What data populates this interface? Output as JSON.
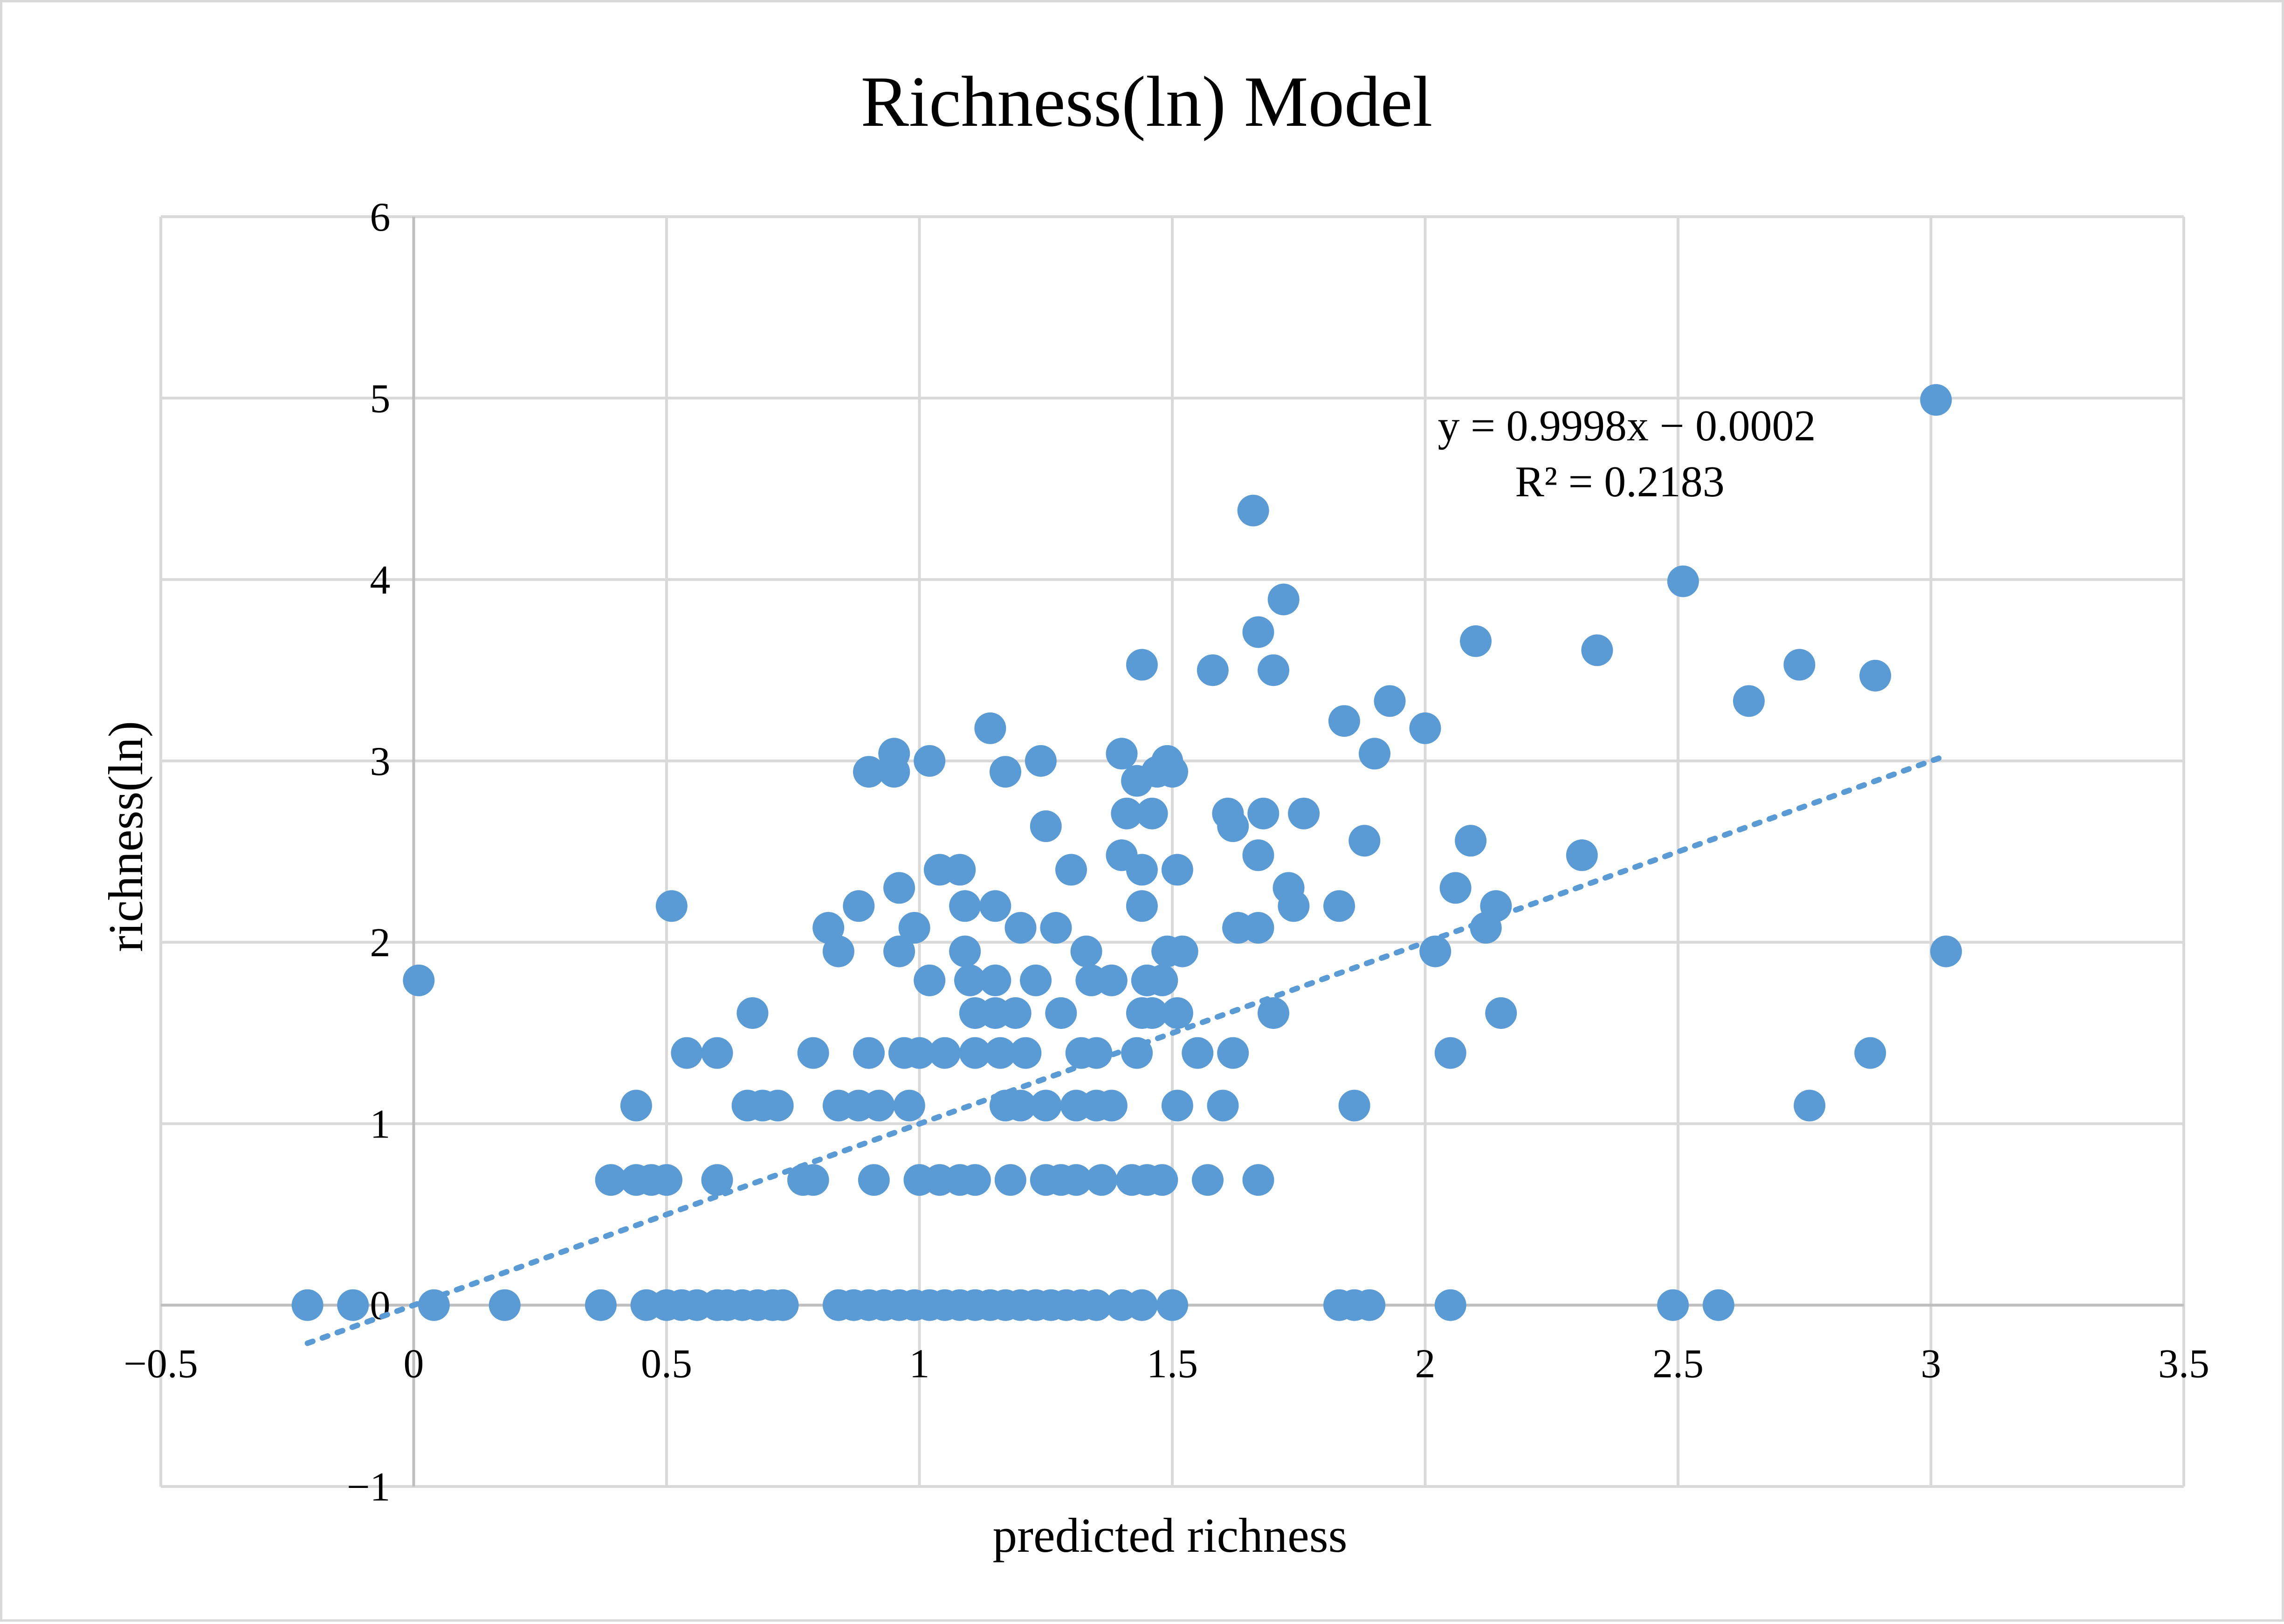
{
  "chart_data": {
    "type": "scatter",
    "title": "Richness(ln) Model",
    "xlabel": "predicted richness",
    "ylabel": "richness(ln)",
    "xlim": [
      -0.5,
      3.5
    ],
    "ylim": [
      -1,
      6
    ],
    "x_ticks": [
      -0.5,
      0,
      0.5,
      1,
      1.5,
      2,
      2.5,
      3,
      3.5
    ],
    "y_ticks": [
      -1,
      0,
      1,
      2,
      3,
      4,
      5,
      6
    ],
    "x_tick_labels": [
      "−0.5",
      "0",
      "0.5",
      "1",
      "1.5",
      "2",
      "2.5",
      "3",
      "3.5"
    ],
    "y_tick_labels": [
      "−1",
      "0",
      "1",
      "2",
      "3",
      "4",
      "5",
      "6"
    ],
    "grid": true,
    "point_color": "#5b9bd5",
    "series": [
      {
        "name": "richness(ln)",
        "points": [
          [
            -0.21,
            0
          ],
          [
            -0.12,
            0
          ],
          [
            0.04,
            0
          ],
          [
            0.18,
            0
          ],
          [
            0.37,
            0
          ],
          [
            0.46,
            0
          ],
          [
            0.5,
            0
          ],
          [
            0.53,
            0
          ],
          [
            0.56,
            0
          ],
          [
            0.6,
            0
          ],
          [
            0.62,
            0
          ],
          [
            0.65,
            0
          ],
          [
            0.68,
            0
          ],
          [
            0.71,
            0
          ],
          [
            0.73,
            0
          ],
          [
            0.84,
            0
          ],
          [
            0.87,
            0
          ],
          [
            0.9,
            0
          ],
          [
            0.93,
            0
          ],
          [
            0.96,
            0
          ],
          [
            0.99,
            0
          ],
          [
            1.02,
            0
          ],
          [
            1.05,
            0
          ],
          [
            1.08,
            0
          ],
          [
            1.11,
            0
          ],
          [
            1.14,
            0
          ],
          [
            1.17,
            0
          ],
          [
            1.2,
            0
          ],
          [
            1.23,
            0
          ],
          [
            1.26,
            0
          ],
          [
            1.29,
            0
          ],
          [
            1.32,
            0
          ],
          [
            1.35,
            0
          ],
          [
            1.4,
            0
          ],
          [
            1.44,
            0
          ],
          [
            1.5,
            0
          ],
          [
            1.83,
            0
          ],
          [
            1.86,
            0
          ],
          [
            1.89,
            0
          ],
          [
            2.05,
            0
          ],
          [
            2.49,
            0
          ],
          [
            2.58,
            0
          ],
          [
            0.01,
            1.79
          ],
          [
            0.39,
            0.69
          ],
          [
            0.44,
            0.69
          ],
          [
            0.47,
            0.69
          ],
          [
            0.5,
            0.69
          ],
          [
            0.6,
            0.69
          ],
          [
            0.77,
            0.69
          ],
          [
            0.79,
            0.69
          ],
          [
            0.91,
            0.69
          ],
          [
            1.0,
            0.69
          ],
          [
            1.04,
            0.69
          ],
          [
            1.08,
            0.69
          ],
          [
            1.11,
            0.69
          ],
          [
            1.18,
            0.69
          ],
          [
            1.25,
            0.69
          ],
          [
            1.28,
            0.69
          ],
          [
            1.31,
            0.69
          ],
          [
            1.36,
            0.69
          ],
          [
            1.42,
            0.69
          ],
          [
            1.45,
            0.69
          ],
          [
            1.48,
            0.69
          ],
          [
            1.57,
            0.69
          ],
          [
            1.67,
            0.69
          ],
          [
            0.44,
            1.1
          ],
          [
            0.66,
            1.1
          ],
          [
            0.69,
            1.1
          ],
          [
            0.72,
            1.1
          ],
          [
            0.84,
            1.1
          ],
          [
            0.88,
            1.1
          ],
          [
            0.92,
            1.1
          ],
          [
            0.98,
            1.1
          ],
          [
            1.17,
            1.1
          ],
          [
            1.2,
            1.1
          ],
          [
            1.25,
            1.1
          ],
          [
            1.31,
            1.1
          ],
          [
            1.35,
            1.1
          ],
          [
            1.38,
            1.1
          ],
          [
            1.51,
            1.1
          ],
          [
            1.6,
            1.1
          ],
          [
            1.86,
            1.1
          ],
          [
            2.76,
            1.1
          ],
          [
            0.54,
            1.39
          ],
          [
            0.6,
            1.39
          ],
          [
            0.79,
            1.39
          ],
          [
            0.9,
            1.39
          ],
          [
            0.97,
            1.39
          ],
          [
            1.0,
            1.39
          ],
          [
            1.05,
            1.39
          ],
          [
            1.11,
            1.39
          ],
          [
            1.16,
            1.39
          ],
          [
            1.21,
            1.39
          ],
          [
            1.32,
            1.39
          ],
          [
            1.35,
            1.39
          ],
          [
            1.43,
            1.39
          ],
          [
            1.55,
            1.39
          ],
          [
            1.62,
            1.39
          ],
          [
            2.05,
            1.39
          ],
          [
            2.88,
            1.39
          ],
          [
            0.67,
            1.61
          ],
          [
            1.11,
            1.61
          ],
          [
            1.15,
            1.61
          ],
          [
            1.19,
            1.61
          ],
          [
            1.28,
            1.61
          ],
          [
            1.44,
            1.61
          ],
          [
            1.46,
            1.61
          ],
          [
            1.51,
            1.61
          ],
          [
            1.7,
            1.61
          ],
          [
            2.15,
            1.61
          ],
          [
            1.02,
            1.79
          ],
          [
            1.1,
            1.79
          ],
          [
            1.15,
            1.79
          ],
          [
            1.23,
            1.79
          ],
          [
            1.34,
            1.79
          ],
          [
            1.38,
            1.79
          ],
          [
            1.45,
            1.79
          ],
          [
            1.48,
            1.79
          ],
          [
            0.84,
            1.95
          ],
          [
            0.96,
            1.95
          ],
          [
            1.09,
            1.95
          ],
          [
            1.33,
            1.95
          ],
          [
            1.49,
            1.95
          ],
          [
            1.52,
            1.95
          ],
          [
            2.02,
            1.95
          ],
          [
            3.03,
            1.95
          ],
          [
            0.82,
            2.08
          ],
          [
            0.99,
            2.08
          ],
          [
            1.2,
            2.08
          ],
          [
            1.27,
            2.08
          ],
          [
            1.63,
            2.08
          ],
          [
            1.67,
            2.08
          ],
          [
            2.12,
            2.08
          ],
          [
            0.51,
            2.2
          ],
          [
            0.88,
            2.2
          ],
          [
            1.09,
            2.2
          ],
          [
            1.15,
            2.2
          ],
          [
            1.44,
            2.2
          ],
          [
            1.74,
            2.2
          ],
          [
            1.83,
            2.2
          ],
          [
            2.14,
            2.2
          ],
          [
            0.96,
            2.3
          ],
          [
            1.73,
            2.3
          ],
          [
            2.06,
            2.3
          ],
          [
            1.04,
            2.4
          ],
          [
            1.08,
            2.4
          ],
          [
            1.3,
            2.4
          ],
          [
            1.44,
            2.4
          ],
          [
            1.51,
            2.4
          ],
          [
            1.4,
            2.48
          ],
          [
            1.67,
            2.48
          ],
          [
            2.31,
            2.48
          ],
          [
            1.88,
            2.56
          ],
          [
            2.09,
            2.56
          ],
          [
            1.25,
            2.64
          ],
          [
            1.62,
            2.64
          ],
          [
            1.41,
            2.71
          ],
          [
            1.46,
            2.71
          ],
          [
            1.61,
            2.71
          ],
          [
            1.68,
            2.71
          ],
          [
            1.76,
            2.71
          ],
          [
            1.43,
            2.89
          ],
          [
            1.47,
            2.94
          ],
          [
            1.5,
            2.94
          ],
          [
            0.9,
            2.94
          ],
          [
            0.95,
            2.94
          ],
          [
            1.17,
            2.94
          ],
          [
            1.02,
            3.0
          ],
          [
            1.24,
            3.0
          ],
          [
            1.49,
            3.0
          ],
          [
            0.95,
            3.04
          ],
          [
            1.4,
            3.04
          ],
          [
            1.9,
            3.04
          ],
          [
            1.14,
            3.18
          ],
          [
            1.84,
            3.22
          ],
          [
            2.0,
            3.18
          ],
          [
            1.93,
            3.33
          ],
          [
            2.64,
            3.33
          ],
          [
            1.58,
            3.5
          ],
          [
            1.7,
            3.5
          ],
          [
            1.44,
            3.53
          ],
          [
            2.74,
            3.53
          ],
          [
            2.89,
            3.47
          ],
          [
            2.34,
            3.61
          ],
          [
            2.1,
            3.66
          ],
          [
            1.67,
            3.71
          ],
          [
            1.72,
            3.89
          ],
          [
            2.51,
            3.99
          ],
          [
            1.66,
            4.38
          ],
          [
            3.01,
            4.99
          ]
        ]
      }
    ],
    "trendline": {
      "style": "dotted",
      "slope": 0.9998,
      "intercept": -0.0002,
      "x_range": [
        -0.21,
        3.03
      ],
      "equation": "y = 0.9998x − 0.0002",
      "r_squared": "R² = 0.2183"
    }
  }
}
